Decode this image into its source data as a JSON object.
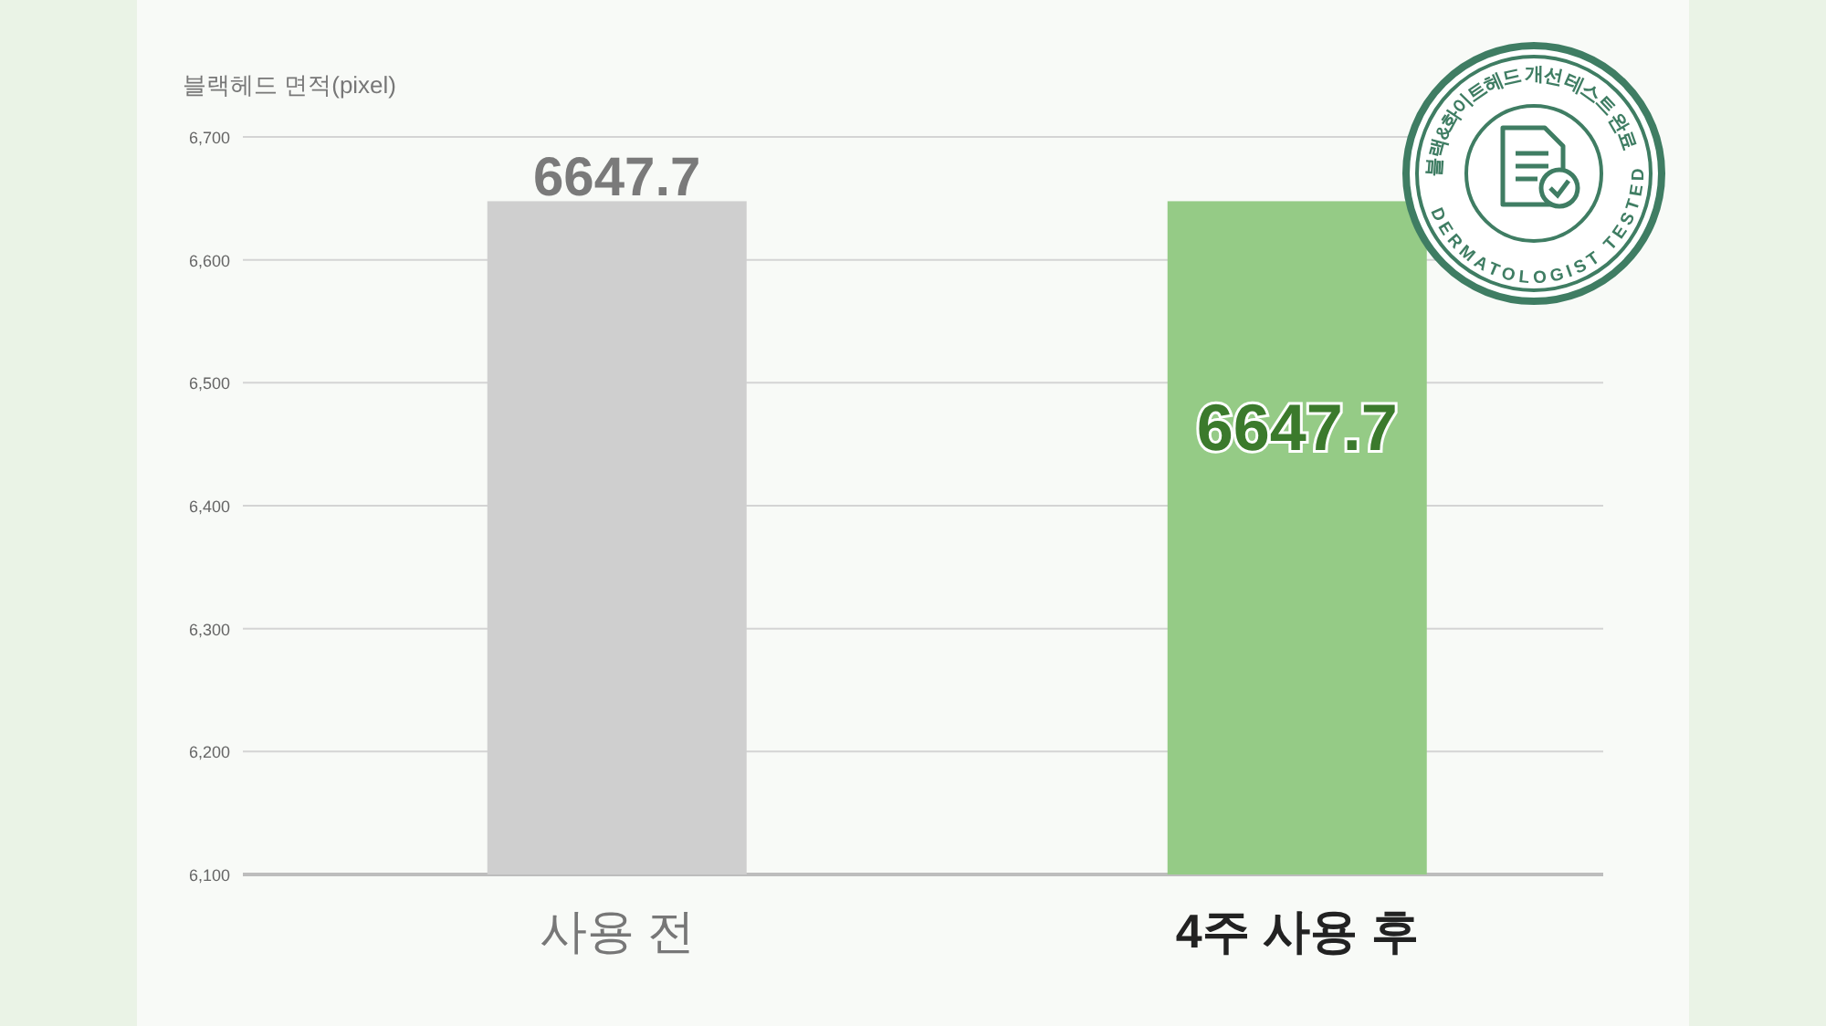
{
  "chart_data": {
    "type": "bar",
    "ylabel": "블랙헤드 면적(pixel)",
    "categories": [
      "사용 전",
      "4주 사용 후"
    ],
    "values": [
      6647.7,
      6647.7
    ],
    "colors": [
      "#cfcfcf",
      "#95cb86"
    ],
    "ylim": [
      6100,
      6700
    ],
    "yticks": [
      {
        "value": 6100,
        "label": "6,100"
      },
      {
        "value": 6200,
        "label": "6,200"
      },
      {
        "value": 6300,
        "label": "6,300"
      },
      {
        "value": 6400,
        "label": "6,400"
      },
      {
        "value": 6500,
        "label": "6,500"
      },
      {
        "value": 6600,
        "label": "6,600"
      },
      {
        "value": 6700,
        "label": "6,700"
      }
    ],
    "grid": "y",
    "data_labels": true,
    "annotations": [
      "블랙&화이트헤드 개선 테스트 완료",
      "DERMATOLOGIST TESTED"
    ]
  }
}
